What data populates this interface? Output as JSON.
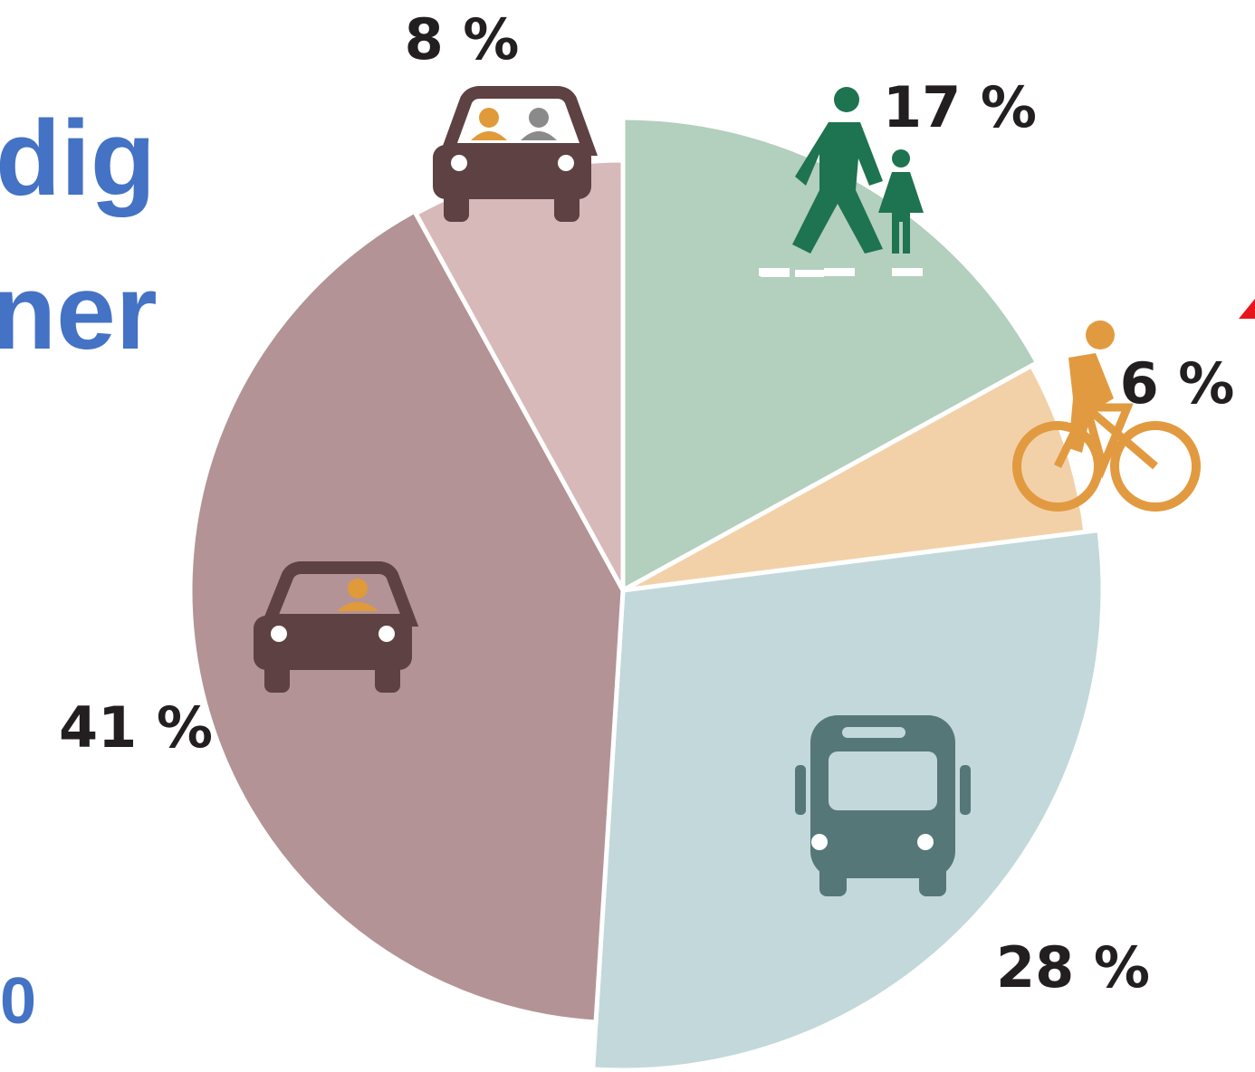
{
  "chart_data": {
    "type": "pie",
    "categories": [
      null,
      null,
      null,
      null,
      null
    ],
    "values": [
      17,
      6,
      28,
      41,
      8
    ],
    "value_labels": [
      "17 %",
      "6 %",
      "28 %",
      "41 %",
      "8 %"
    ],
    "colors": [
      "#b3cfbe",
      "#f2d1a9",
      "#c3d8da",
      "#b39395",
      "#d8b9b9"
    ],
    "annotations": [
      "dig",
      "ner",
      "0"
    ]
  }
}
